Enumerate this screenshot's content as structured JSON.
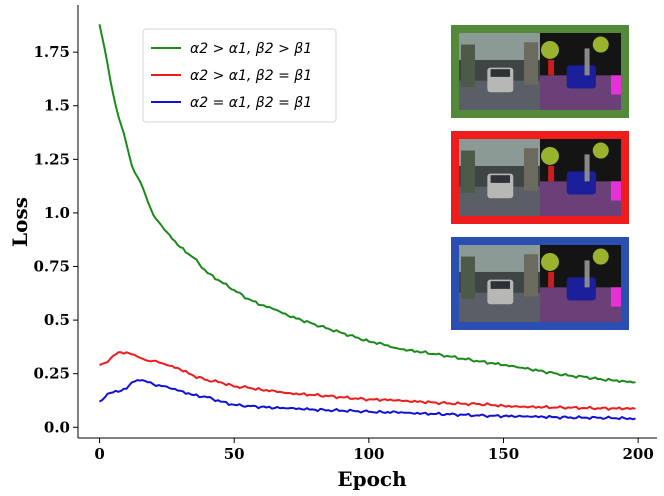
{
  "chart_data": {
    "type": "line",
    "title": "",
    "xlabel": "Epoch",
    "ylabel": "Loss",
    "xlim": [
      -8,
      207
    ],
    "ylim": [
      -0.05,
      1.97
    ],
    "xticks": [
      0,
      50,
      100,
      150,
      200
    ],
    "yticks": [
      0.0,
      0.25,
      0.5,
      0.75,
      1.0,
      1.25,
      1.5,
      1.75
    ],
    "xtick_labels": [
      "0",
      "50",
      "100",
      "150",
      "200"
    ],
    "ytick_labels": [
      "0.0",
      "0.25",
      "0.5",
      "0.75",
      "1.0",
      "1.25",
      "1.5",
      "1.75"
    ],
    "grid": false,
    "legend_position": "top-left",
    "x": [
      0,
      2,
      4,
      6,
      8,
      10,
      12,
      14,
      16,
      18,
      20,
      25,
      30,
      35,
      40,
      45,
      50,
      55,
      60,
      65,
      70,
      75,
      80,
      85,
      90,
      95,
      100,
      105,
      110,
      115,
      120,
      125,
      130,
      135,
      140,
      145,
      150,
      155,
      160,
      165,
      170,
      175,
      180,
      185,
      190,
      195,
      199
    ],
    "series": [
      {
        "name": "α2 > α1, β2 > β1",
        "color": "#1b8a1b",
        "values": [
          1.88,
          1.76,
          1.62,
          1.5,
          1.41,
          1.32,
          1.22,
          1.17,
          1.12,
          1.05,
          0.99,
          0.91,
          0.84,
          0.79,
          0.72,
          0.68,
          0.64,
          0.6,
          0.57,
          0.55,
          0.52,
          0.5,
          0.48,
          0.46,
          0.44,
          0.42,
          0.4,
          0.39,
          0.37,
          0.36,
          0.35,
          0.34,
          0.33,
          0.32,
          0.31,
          0.3,
          0.29,
          0.28,
          0.27,
          0.26,
          0.25,
          0.24,
          0.235,
          0.225,
          0.22,
          0.215,
          0.21
        ]
      },
      {
        "name": "α2 > α1, β2 = β1",
        "color": "#ee1c1c",
        "values": [
          0.29,
          0.3,
          0.32,
          0.34,
          0.35,
          0.35,
          0.34,
          0.33,
          0.32,
          0.31,
          0.31,
          0.29,
          0.27,
          0.24,
          0.22,
          0.21,
          0.19,
          0.185,
          0.175,
          0.17,
          0.16,
          0.155,
          0.15,
          0.145,
          0.14,
          0.135,
          0.13,
          0.128,
          0.125,
          0.12,
          0.118,
          0.115,
          0.112,
          0.11,
          0.108,
          0.105,
          0.1,
          0.098,
          0.096,
          0.094,
          0.092,
          0.091,
          0.09,
          0.089,
          0.088,
          0.087,
          0.086
        ]
      },
      {
        "name": "α2 = α1, β2 = β1",
        "color": "#1212d6",
        "values": [
          0.12,
          0.14,
          0.16,
          0.17,
          0.17,
          0.18,
          0.21,
          0.22,
          0.22,
          0.21,
          0.2,
          0.19,
          0.17,
          0.15,
          0.14,
          0.12,
          0.105,
          0.1,
          0.095,
          0.09,
          0.088,
          0.085,
          0.082,
          0.08,
          0.078,
          0.075,
          0.072,
          0.07,
          0.072,
          0.068,
          0.065,
          0.062,
          0.06,
          0.058,
          0.056,
          0.054,
          0.052,
          0.05,
          0.049,
          0.048,
          0.047,
          0.046,
          0.045,
          0.044,
          0.043,
          0.042,
          0.041
        ]
      }
    ]
  },
  "insets": [
    {
      "border_color": "#55893a"
    },
    {
      "border_color": "#ee1c1c"
    },
    {
      "border_color": "#2a4fb0"
    }
  ]
}
